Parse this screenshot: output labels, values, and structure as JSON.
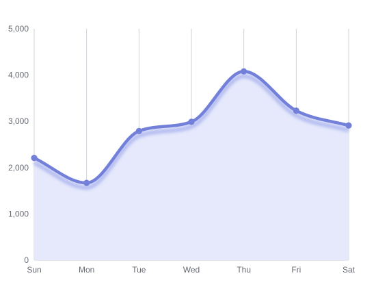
{
  "chart_data": {
    "type": "area",
    "smooth": true,
    "categories": [
      "Sun",
      "Mon",
      "Tue",
      "Wed",
      "Thu",
      "Fri",
      "Sat"
    ],
    "values": [
      2210,
      1670,
      2790,
      2990,
      4080,
      3230,
      2910
    ],
    "ylim": [
      0,
      5000
    ],
    "yticks": [
      "0",
      "1,000",
      "2,000",
      "3,000",
      "4,000",
      "5,000"
    ],
    "grid": "vertical",
    "legend": "none",
    "colors": {
      "line": "#7380d9",
      "shadow": "#aab4ee",
      "fill": "#e6e9fb",
      "grid": "#cfd2d9",
      "axis": "#666a73"
    }
  }
}
